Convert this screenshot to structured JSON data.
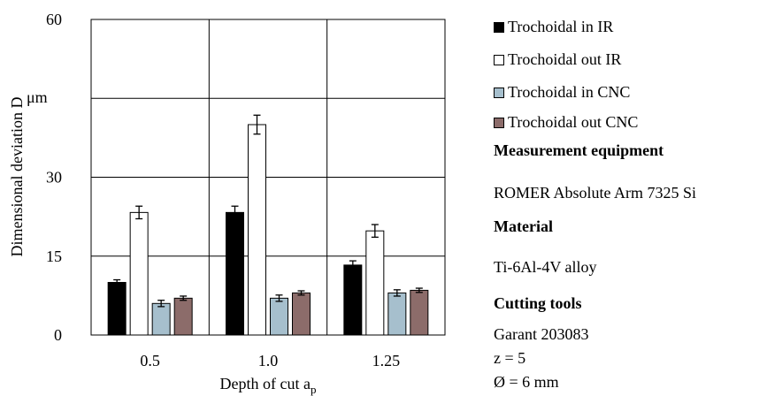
{
  "chart_data": {
    "type": "bar",
    "categories": [
      "0.5",
      "1.0",
      "1.25"
    ],
    "series": [
      {
        "name": "Trochoidal in IR",
        "values": [
          10,
          23.3,
          13.3
        ],
        "errors": [
          0.5,
          1.2,
          0.8
        ],
        "color": "#000000"
      },
      {
        "name": "Trochoidal out IR",
        "values": [
          23.3,
          40,
          19.8
        ],
        "errors": [
          1.2,
          1.8,
          1.2
        ],
        "color": "#ffffff"
      },
      {
        "name": "Trochoidal in CNC",
        "values": [
          6,
          7,
          8
        ],
        "errors": [
          0.6,
          0.6,
          0.6
        ],
        "color": "#a6bfcd"
      },
      {
        "name": "Trochoidal out CNC",
        "values": [
          7,
          8,
          8.5
        ],
        "errors": [
          0.4,
          0.4,
          0.4
        ],
        "color": "#8c6c6a"
      }
    ],
    "xlabel": "Depth of cut a",
    "xlabel_sub": "p",
    "ylabel": "Dimensional deviation D",
    "yunit": "μm",
    "ylim": [
      0,
      60
    ],
    "yticks": [
      0,
      15,
      30,
      60
    ],
    "grid": true,
    "legend_position": "right"
  },
  "info": {
    "equipment_heading": "Measurement equipment",
    "equipment_value": "ROMER Absolute Arm 7325 Si",
    "material_heading": "Material",
    "material_value": "Ti-6Al-4V alloy",
    "tools_heading": "Cutting tools",
    "tools_model": "Garant 203083",
    "tools_z": "z  = 5",
    "tools_diameter": "Ø = 6 mm"
  }
}
